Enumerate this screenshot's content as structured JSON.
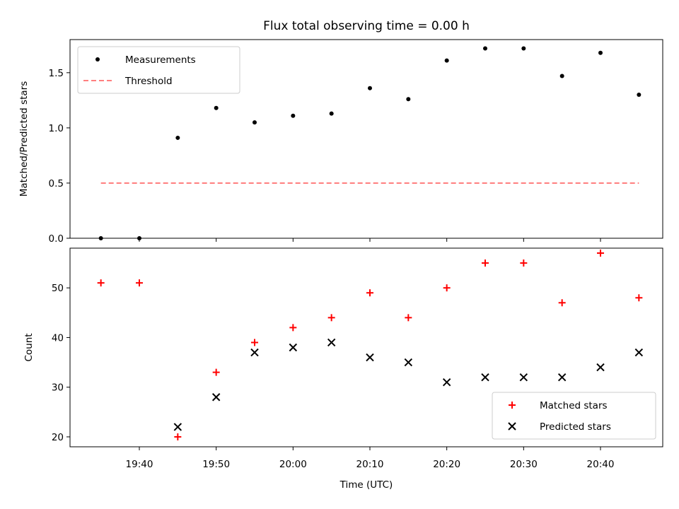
{
  "chart_data": [
    {
      "type": "scatter",
      "title": "Flux total observing time = 0.00 h",
      "xlabel": "",
      "ylabel": "Matched/Predicted stars",
      "ylim": [
        0,
        1.8
      ],
      "yticks": [
        "0.0",
        "0.5",
        "1.0",
        "1.5"
      ],
      "x_times": [
        "19:35",
        "19:40",
        "19:45",
        "19:50",
        "19:55",
        "20:00",
        "20:05",
        "20:10",
        "20:15",
        "20:20",
        "20:25",
        "20:30",
        "20:35",
        "20:40",
        "20:45"
      ],
      "series": [
        {
          "name": "Measurements",
          "marker": "dot",
          "color": "#000000",
          "values": [
            0.0,
            0.0,
            0.91,
            1.18,
            1.05,
            1.11,
            1.13,
            1.36,
            1.26,
            1.61,
            1.72,
            1.72,
            1.47,
            1.68,
            1.3
          ]
        },
        {
          "name": "Threshold",
          "marker": "dashed-line",
          "color": "#ff7f7f",
          "x": [
            "19:35",
            "20:45"
          ],
          "values": [
            0.5,
            0.5
          ]
        }
      ],
      "legend": "top-left",
      "grid": false
    },
    {
      "type": "scatter",
      "title": "",
      "xlabel": "Time (UTC)",
      "ylabel": "Count",
      "ylim": [
        18,
        58
      ],
      "yticks": [
        "20",
        "30",
        "40",
        "50"
      ],
      "xticks": [
        "19:40",
        "19:50",
        "20:00",
        "20:10",
        "20:20",
        "20:30",
        "20:40"
      ],
      "x_times": [
        "19:35",
        "19:40",
        "19:45",
        "19:50",
        "19:55",
        "20:00",
        "20:05",
        "20:10",
        "20:15",
        "20:20",
        "20:25",
        "20:30",
        "20:35",
        "20:40",
        "20:45"
      ],
      "series": [
        {
          "name": "Matched stars",
          "marker": "plus",
          "color": "#ff0000",
          "values": [
            51,
            51,
            20,
            33,
            39,
            42,
            44,
            49,
            44,
            50,
            55,
            55,
            47,
            57,
            48
          ]
        },
        {
          "name": "Predicted stars",
          "marker": "x",
          "color": "#000000",
          "values": [
            null,
            null,
            22,
            28,
            37,
            38,
            39,
            36,
            35,
            31,
            32,
            32,
            32,
            34,
            37
          ]
        }
      ],
      "legend": "bottom-right",
      "grid": false
    }
  ]
}
